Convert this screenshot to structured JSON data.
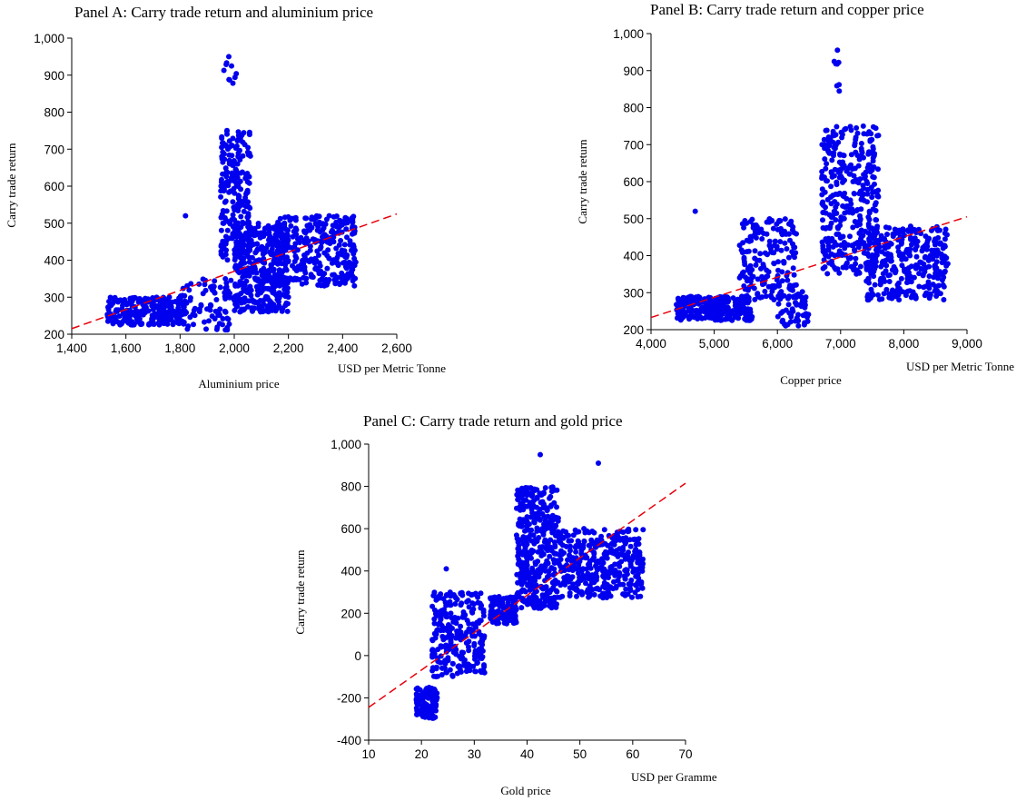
{
  "chart_data": [
    {
      "type": "scatter",
      "title": "Panel A: Carry trade return and aluminium price",
      "xlabel": "Aluminium price",
      "xunit": "USD per Metric Tonne",
      "ylabel": "Carry trade return",
      "xlim": [
        1400,
        2600
      ],
      "ylim": [
        200,
        1000
      ],
      "xticks": [
        "1,400",
        "1,600",
        "1,800",
        "2,000",
        "2,200",
        "2,400",
        "2,600"
      ],
      "yticks": [
        "200",
        "300",
        "400",
        "500",
        "600",
        "700",
        "800",
        "900",
        "1,000"
      ],
      "fit_line": [
        [
          1400,
          215
        ],
        [
          2600,
          525
        ]
      ],
      "clusters": [
        {
          "x": [
            1530,
            1820
          ],
          "y": [
            225,
            300
          ],
          "n": 260
        },
        {
          "x": [
            1780,
            1990
          ],
          "y": [
            210,
            350
          ],
          "n": 90
        },
        {
          "x": [
            1950,
            2060
          ],
          "y": [
            400,
            760
          ],
          "n": 220
        },
        {
          "x": [
            2000,
            2200
          ],
          "y": [
            260,
            500
          ],
          "n": 420
        },
        {
          "x": [
            2150,
            2450
          ],
          "y": [
            330,
            520
          ],
          "n": 320
        },
        {
          "x": [
            1960,
            2010
          ],
          "y": [
            820,
            950
          ],
          "n": 8
        }
      ],
      "points": [
        [
          1980,
          950
        ],
        [
          1990,
          925
        ],
        [
          1820,
          520
        ]
      ],
      "series_color": "#0000ee",
      "fit_color": "#e8000b"
    },
    {
      "type": "scatter",
      "title": "Panel B: Carry trade return and copper price",
      "xlabel": "Copper price",
      "xunit": "USD per Metric Tonne",
      "ylabel": "Carry trade return",
      "xlim": [
        4000,
        9000
      ],
      "ylim": [
        200,
        1000
      ],
      "xticks": [
        "4,000",
        "5,000",
        "6,000",
        "7,000",
        "8,000",
        "9,000"
      ],
      "yticks": [
        "200",
        "300",
        "400",
        "500",
        "600",
        "700",
        "800",
        "900",
        "1,000"
      ],
      "fit_line": [
        [
          4000,
          233
        ],
        [
          9000,
          505
        ]
      ],
      "clusters": [
        {
          "x": [
            4400,
            5600
          ],
          "y": [
            225,
            290
          ],
          "n": 260
        },
        {
          "x": [
            5400,
            6300
          ],
          "y": [
            280,
            500
          ],
          "n": 180
        },
        {
          "x": [
            6700,
            7600
          ],
          "y": [
            350,
            750
          ],
          "n": 380
        },
        {
          "x": [
            7400,
            8700
          ],
          "y": [
            280,
            480
          ],
          "n": 330
        },
        {
          "x": [
            6000,
            6500
          ],
          "y": [
            210,
            320
          ],
          "n": 60
        },
        {
          "x": [
            6900,
            7000
          ],
          "y": [
            820,
            950
          ],
          "n": 6
        }
      ],
      "points": [
        [
          4700,
          520
        ],
        [
          6950,
          955
        ],
        [
          6900,
          925
        ]
      ],
      "series_color": "#0000ee",
      "fit_color": "#e8000b"
    },
    {
      "type": "scatter",
      "title": "Panel C: Carry trade return and gold price",
      "xlabel": "Gold price",
      "xunit": "USD per Gramme",
      "ylabel": "Carry trade return",
      "xlim": [
        10,
        70
      ],
      "ylim": [
        -400,
        1000
      ],
      "xticks": [
        "10",
        "20",
        "30",
        "40",
        "50",
        "60",
        "70"
      ],
      "yticks": [
        "-400",
        "-200",
        "0",
        "200",
        "400",
        "600",
        "800",
        "1,000"
      ],
      "fit_line": [
        [
          10,
          -245
        ],
        [
          70,
          815
        ]
      ],
      "clusters": [
        {
          "x": [
            19,
            23
          ],
          "y": [
            -300,
            -150
          ],
          "n": 110
        },
        {
          "x": [
            22,
            32
          ],
          "y": [
            -100,
            300
          ],
          "n": 260
        },
        {
          "x": [
            33,
            38
          ],
          "y": [
            150,
            280
          ],
          "n": 120
        },
        {
          "x": [
            38,
            46
          ],
          "y": [
            220,
            800
          ],
          "n": 380
        },
        {
          "x": [
            46,
            62
          ],
          "y": [
            270,
            600
          ],
          "n": 380
        }
      ],
      "points": [
        [
          24.7,
          410
        ],
        [
          42.5,
          950
        ],
        [
          53.5,
          910
        ]
      ],
      "series_color": "#0000ee",
      "fit_color": "#e8000b"
    }
  ]
}
